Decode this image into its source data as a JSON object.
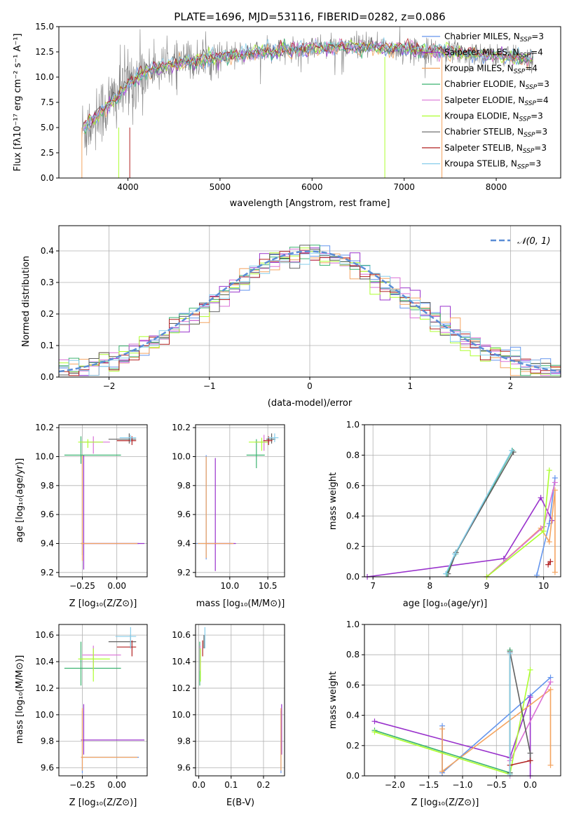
{
  "colors": {
    "series": [
      "#6495ED",
      "#9932CC",
      "#F4A460",
      "#3CB371",
      "#DA70D6",
      "#ADFF2F",
      "#606060",
      "#B22222",
      "#87CEEB"
    ],
    "data_line": "#808080",
    "gaussian": "#5B8DD6"
  },
  "legend_labels": [
    "Chabrier MILES",
    "Salpeter MILES",
    "Kroupa MILES",
    "Chabrier ELODIE",
    "Salpeter ELODIE",
    "Kroupa ELODIE",
    "Chabrier STELIB",
    "Salpeter STELIB",
    "Kroupa STELIB"
  ],
  "legend_nssp": [
    "3",
    "4",
    "4",
    "3",
    "4",
    "3",
    "3",
    "3",
    "3"
  ],
  "legend_sub": "SSP",
  "legend_prefix": "N",
  "spectrum": {
    "title": "PLATE=1696, MJD=53116, FIBERID=0282, z=0.086",
    "xlabel": "wavelength [Angstrom, rest frame]",
    "ylabel": "Flux [fλ10⁻¹⁷ erg cm⁻² s⁻¹ A⁻¹]",
    "xticks": [
      "4000",
      "5000",
      "6000",
      "7000",
      "8000"
    ],
    "yticks": [
      "0.0",
      "2.5",
      "5.0",
      "7.5",
      "10.0",
      "12.5",
      "15.0"
    ]
  },
  "residuals": {
    "xlabel": "(data-model)/error",
    "ylabel": "Normed distribution",
    "gauss_label": "𝒩(0, 1)",
    "xticks": [
      "−2",
      "−1",
      "0",
      "1",
      "2"
    ],
    "yticks": [
      "0.0",
      "0.1",
      "0.2",
      "0.3",
      "0.4"
    ]
  },
  "panels": {
    "z_label": "Z [log₁₀(Z/Z⊙)]",
    "age_label": "age  [log₁₀(age/yr)]",
    "mass_label": "mass [log₁₀(M/M⊙)]",
    "ebv_label": "E(B-V)",
    "weight_label": "mass weight",
    "age_ticks": [
      "9.2",
      "9.4",
      "9.6",
      "9.8",
      "10.0",
      "10.2"
    ],
    "mass_ticks": [
      "9.6",
      "9.8",
      "10.0",
      "10.2",
      "10.4",
      "10.6"
    ],
    "z_small_ticks": [
      "−0.25",
      "0.00"
    ],
    "mass_x_ticks": [
      "10.0",
      "10.5"
    ],
    "ebv_ticks": [
      "0.0",
      "0.1",
      "0.2"
    ],
    "weight_ticks": [
      "0.0",
      "0.2",
      "0.4",
      "0.6",
      "0.8",
      "1.0"
    ],
    "age_w_ticks": [
      "7",
      "8",
      "9",
      "10"
    ],
    "z_w_ticks": [
      "−2.0",
      "−1.5",
      "−1.0",
      "−0.5",
      "0.0"
    ]
  },
  "chart_data": [
    {
      "type": "line",
      "title": "PLATE=1696, MJD=53116, FIBERID=0282, z=0.086",
      "xlabel": "wavelength [Angstrom, rest frame]",
      "ylabel": "Flux [fλ10⁻¹⁷ erg cm⁻² s⁻¹ A⁻¹]",
      "xlim": [
        3250,
        8700
      ],
      "ylim": [
        0,
        15
      ],
      "legend_position": "top-right",
      "grid": false,
      "continuum_approx": [
        [
          3500,
          4.6
        ],
        [
          3700,
          6.5
        ],
        [
          3900,
          8.3
        ],
        [
          4000,
          9.3
        ],
        [
          4200,
          10.6
        ],
        [
          4500,
          11.3
        ],
        [
          5000,
          12.0
        ],
        [
          5500,
          12.5
        ],
        [
          6000,
          12.9
        ],
        [
          6500,
          13.0
        ],
        [
          7000,
          12.8
        ],
        [
          7500,
          12.5
        ],
        [
          8000,
          12.1
        ],
        [
          8400,
          11.8
        ]
      ]
    },
    {
      "type": "line",
      "xlabel": "(data-model)/error",
      "ylabel": "Normed distribution",
      "xlim": [
        -2.5,
        2.5
      ],
      "ylim": [
        0,
        0.48
      ],
      "grid": true,
      "legend_position": "top-right",
      "series": [
        {
          "name": "𝒩(0, 1)",
          "mean": 0,
          "sigma": 1
        }
      ],
      "histogram_bin_width": 0.1,
      "histogram_range": [
        -2.5,
        2.5
      ]
    },
    {
      "type": "scatter",
      "xlabel": "Z [log₁₀(Z/Z⊙)]",
      "ylabel": "age  [log₁₀(age/yr)]",
      "xlim": [
        -0.42,
        0.22
      ],
      "ylim": [
        9.17,
        10.22
      ],
      "grid": true,
      "points": [
        {
          "x": -0.25,
          "y": 9.4,
          "xlo": -0.26,
          "xhi": 0.16,
          "ylo": 9.32,
          "yhi": 10.01
        },
        {
          "x": -0.24,
          "y": 9.4,
          "xlo": -0.26,
          "xhi": 0.2,
          "ylo": 9.22,
          "yhi": 10.01
        },
        {
          "x": -0.25,
          "y": 9.4,
          "xlo": -0.26,
          "xhi": 0.15,
          "ylo": 9.28,
          "yhi": 10.01
        },
        {
          "x": -0.26,
          "y": 10.01,
          "xlo": -0.38,
          "xhi": 0.03,
          "ylo": 9.95,
          "yhi": 10.14
        },
        {
          "x": -0.17,
          "y": 10.1,
          "xlo": -0.25,
          "xhi": -0.05,
          "ylo": 10.02,
          "yhi": 10.14
        },
        {
          "x": -0.21,
          "y": 10.1,
          "xlo": -0.28,
          "xhi": -0.1,
          "ylo": 10.06,
          "yhi": 10.12
        },
        {
          "x": 0.09,
          "y": 10.12,
          "xlo": -0.06,
          "xhi": 0.14,
          "ylo": 10.09,
          "yhi": 10.16
        },
        {
          "x": 0.11,
          "y": 10.11,
          "xlo": 0.0,
          "xhi": 0.14,
          "ylo": 10.08,
          "yhi": 10.14
        },
        {
          "x": 0.1,
          "y": 10.13,
          "xlo": 0.02,
          "xhi": 0.14,
          "ylo": 10.1,
          "yhi": 10.15
        }
      ]
    },
    {
      "type": "scatter",
      "xlabel": "mass [log₁₀(M/M⊙)]",
      "ylabel": "age  [log₁₀(age/yr)]",
      "xlim": [
        9.55,
        10.72
      ],
      "ylim": [
        9.17,
        10.22
      ],
      "grid": true,
      "points": [
        {
          "x": 9.69,
          "y": 9.4,
          "xlo": 9.56,
          "xhi": 10.03,
          "ylo": 9.29,
          "yhi": 10.01
        },
        {
          "x": 9.81,
          "y": 9.4,
          "xlo": 9.7,
          "xhi": 10.08,
          "ylo": 9.21,
          "yhi": 9.99
        },
        {
          "x": 9.69,
          "y": 9.4,
          "xlo": 9.58,
          "xhi": 10.05,
          "ylo": 9.3,
          "yhi": 10.0
        },
        {
          "x": 10.35,
          "y": 10.01,
          "xlo": 10.22,
          "xhi": 10.46,
          "ylo": 9.92,
          "yhi": 10.12
        },
        {
          "x": 10.45,
          "y": 10.1,
          "xlo": 10.33,
          "xhi": 10.52,
          "ylo": 10.04,
          "yhi": 10.15
        },
        {
          "x": 10.42,
          "y": 10.1,
          "xlo": 10.25,
          "xhi": 10.5,
          "ylo": 10.04,
          "yhi": 10.13
        },
        {
          "x": 10.55,
          "y": 10.12,
          "xlo": 10.48,
          "xhi": 10.6,
          "ylo": 10.09,
          "yhi": 10.16
        },
        {
          "x": 10.51,
          "y": 10.11,
          "xlo": 10.44,
          "xhi": 10.56,
          "ylo": 10.08,
          "yhi": 10.14
        },
        {
          "x": 10.59,
          "y": 10.13,
          "xlo": 10.5,
          "xhi": 10.64,
          "ylo": 10.1,
          "yhi": 10.16
        }
      ]
    },
    {
      "type": "line",
      "xlabel": "age  [log₁₀(age/yr)]",
      "ylabel": "mass weight",
      "xlim": [
        6.85,
        10.3
      ],
      "ylim": [
        0,
        1
      ],
      "grid": true,
      "series": [
        {
          "points": [
            [
              9.88,
              0.01
            ],
            [
              10.1,
              0.35
            ],
            [
              10.2,
              0.65
            ]
          ]
        },
        {
          "points": [
            [
              6.9,
              0.0
            ],
            [
              9.3,
              0.12
            ],
            [
              9.95,
              0.52
            ],
            [
              10.15,
              0.37
            ]
          ]
        },
        {
          "points": [
            [
              9.0,
              0.0
            ],
            [
              9.95,
              0.32
            ],
            [
              10.1,
              0.23
            ],
            [
              10.2,
              0.57
            ],
            [
              10.2,
              0.03
            ]
          ]
        },
        {
          "points": [
            [
              8.3,
              0.02
            ],
            [
              8.45,
              0.15
            ],
            [
              9.45,
              0.83
            ]
          ]
        },
        {
          "points": [
            [
              9.0,
              0.0
            ],
            [
              10.0,
              0.33
            ],
            [
              10.2,
              0.62
            ]
          ]
        },
        {
          "points": [
            [
              9.0,
              0.0
            ],
            [
              10.0,
              0.3
            ],
            [
              10.1,
              0.7
            ]
          ]
        },
        {
          "points": [
            [
              8.32,
              0.02
            ],
            [
              8.46,
              0.16
            ],
            [
              9.47,
              0.82
            ]
          ]
        },
        {
          "points": [
            [
              10.08,
              0.08
            ],
            [
              10.12,
              0.1
            ]
          ]
        },
        {
          "points": [
            [
              8.28,
              0.02
            ],
            [
              8.44,
              0.15
            ],
            [
              9.44,
              0.83
            ]
          ]
        }
      ]
    },
    {
      "type": "scatter",
      "xlabel": "Z [log₁₀(Z/Z⊙)]",
      "ylabel": "mass [log₁₀(M/M⊙)]",
      "xlim": [
        -0.42,
        0.22
      ],
      "ylim": [
        9.54,
        10.68
      ],
      "grid": true,
      "points": [
        {
          "x": -0.25,
          "y": 9.68,
          "xlo": -0.26,
          "xhi": 0.16,
          "ylo": 9.56,
          "yhi": 10.03
        },
        {
          "x": -0.24,
          "y": 9.81,
          "xlo": -0.26,
          "xhi": 0.2,
          "ylo": 9.7,
          "yhi": 10.08
        },
        {
          "x": -0.25,
          "y": 9.68,
          "xlo": -0.26,
          "xhi": 0.15,
          "ylo": 9.58,
          "yhi": 10.05
        },
        {
          "x": -0.26,
          "y": 10.35,
          "xlo": -0.38,
          "xhi": 0.03,
          "ylo": 10.22,
          "yhi": 10.55
        },
        {
          "x": -0.17,
          "y": 10.45,
          "xlo": -0.25,
          "xhi": 0.03,
          "ylo": 10.33,
          "yhi": 10.52
        },
        {
          "x": -0.17,
          "y": 10.42,
          "xlo": -0.28,
          "xhi": -0.05,
          "ylo": 10.25,
          "yhi": 10.5
        },
        {
          "x": 0.1,
          "y": 10.55,
          "xlo": -0.06,
          "xhi": 0.14,
          "ylo": 10.5,
          "yhi": 10.6
        },
        {
          "x": 0.11,
          "y": 10.51,
          "xlo": 0.0,
          "xhi": 0.14,
          "ylo": 10.44,
          "yhi": 10.56
        },
        {
          "x": 0.1,
          "y": 10.59,
          "xlo": -0.01,
          "xhi": 0.14,
          "ylo": 10.5,
          "yhi": 10.66
        }
      ]
    },
    {
      "type": "scatter",
      "xlabel": "E(B-V)",
      "ylabel": "mass [log₁₀(M/M⊙)]",
      "xlim": [
        -0.01,
        0.265
      ],
      "ylim": [
        9.54,
        10.68
      ],
      "grid": true,
      "points": [
        {
          "x": 0.254,
          "y": 9.68,
          "ylo": 9.56,
          "yhi": 10.03
        },
        {
          "x": 0.256,
          "y": 9.81,
          "ylo": 9.7,
          "yhi": 10.08
        },
        {
          "x": 0.254,
          "y": 9.68,
          "ylo": 9.58,
          "yhi": 10.05
        },
        {
          "x": 0.003,
          "y": 10.35,
          "ylo": 10.22,
          "yhi": 10.55
        },
        {
          "x": 0.004,
          "y": 10.45,
          "ylo": 10.33,
          "yhi": 10.52
        },
        {
          "x": 0.005,
          "y": 10.42,
          "ylo": 10.25,
          "yhi": 10.5
        },
        {
          "x": 0.016,
          "y": 10.55,
          "ylo": 10.5,
          "yhi": 10.6
        },
        {
          "x": 0.012,
          "y": 10.51,
          "ylo": 10.44,
          "yhi": 10.56
        },
        {
          "x": 0.019,
          "y": 10.59,
          "ylo": 10.5,
          "yhi": 10.66
        }
      ]
    },
    {
      "type": "line",
      "xlabel": "Z [log₁₀(Z/Z⊙)]",
      "ylabel": "mass weight",
      "xlim": [
        -2.45,
        0.45
      ],
      "ylim": [
        0,
        1
      ],
      "grid": true,
      "series": [
        {
          "points": [
            [
              -1.3,
              0.33
            ],
            [
              -1.3,
              0.02
            ],
            [
              0.0,
              0.53
            ],
            [
              0.3,
              0.65
            ]
          ]
        },
        {
          "points": [
            [
              -2.3,
              0.36
            ],
            [
              -0.3,
              0.12
            ],
            [
              0.0,
              0.52
            ],
            [
              0.0,
              0.0
            ]
          ]
        },
        {
          "points": [
            [
              -1.3,
              0.31
            ],
            [
              -1.3,
              0.03
            ],
            [
              0.3,
              0.57
            ],
            [
              0.3,
              0.07
            ]
          ]
        },
        {
          "points": [
            [
              -2.3,
              0.3
            ],
            [
              -0.3,
              0.02
            ],
            [
              -0.3,
              0.83
            ]
          ]
        },
        {
          "points": [
            [
              -0.3,
              0.0
            ],
            [
              -0.3,
              0.1
            ],
            [
              0.3,
              0.62
            ]
          ]
        },
        {
          "points": [
            [
              -2.3,
              0.29
            ],
            [
              -0.3,
              0.01
            ],
            [
              0.0,
              0.7
            ]
          ]
        },
        {
          "points": [
            [
              -0.3,
              0.02
            ],
            [
              -0.3,
              0.82
            ],
            [
              0.0,
              0.15
            ],
            [
              0.0,
              0.1
            ]
          ]
        },
        {
          "points": [
            [
              -0.3,
              0.07
            ],
            [
              0.0,
              0.1
            ]
          ]
        },
        {
          "points": [
            [
              -0.3,
              0.01
            ],
            [
              -0.3,
              0.81
            ]
          ]
        }
      ]
    }
  ]
}
